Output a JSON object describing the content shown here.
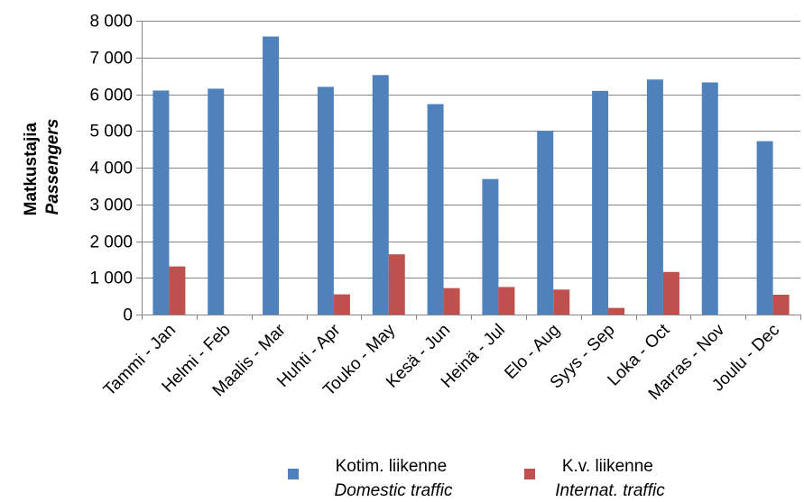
{
  "chart_data": {
    "type": "bar",
    "categories": [
      "Tammi - Jan",
      "Helmi - Feb",
      "Maalis - Mar",
      "Huhti - Apr",
      "Touko - May",
      "Kesä - Jun",
      "Heinä - Jul",
      "Elo - Aug",
      "Syys - Sep",
      "Loka - Oct",
      "Marras - Nov",
      "Joulu - Dec"
    ],
    "series": [
      {
        "name_line1": "Kotim. liikenne",
        "name_line2": "Domestic traffic",
        "color": "#4f81bd",
        "values": [
          6100,
          6150,
          7570,
          6200,
          6520,
          5730,
          3690,
          5000,
          6090,
          6400,
          6320,
          4720
        ]
      },
      {
        "name_line1": "K.v. liikenne",
        "name_line2": "Internat. traffic",
        "color": "#c0504d",
        "values": [
          1310,
          0,
          0,
          550,
          1640,
          720,
          750,
          680,
          180,
          1160,
          0,
          540
        ]
      }
    ],
    "ylabel_line1": "Matkustajia",
    "ylabel_line2": "Passengers",
    "ylim": [
      0,
      8000
    ],
    "yticks": [
      0,
      1000,
      2000,
      3000,
      4000,
      5000,
      6000,
      7000,
      8000
    ],
    "ytick_labels": [
      "0",
      "1 000",
      "2 000",
      "3 000",
      "4 000",
      "5 000",
      "6 000",
      "7 000",
      "8 000"
    ],
    "grid": true,
    "legend_position": "bottom"
  }
}
